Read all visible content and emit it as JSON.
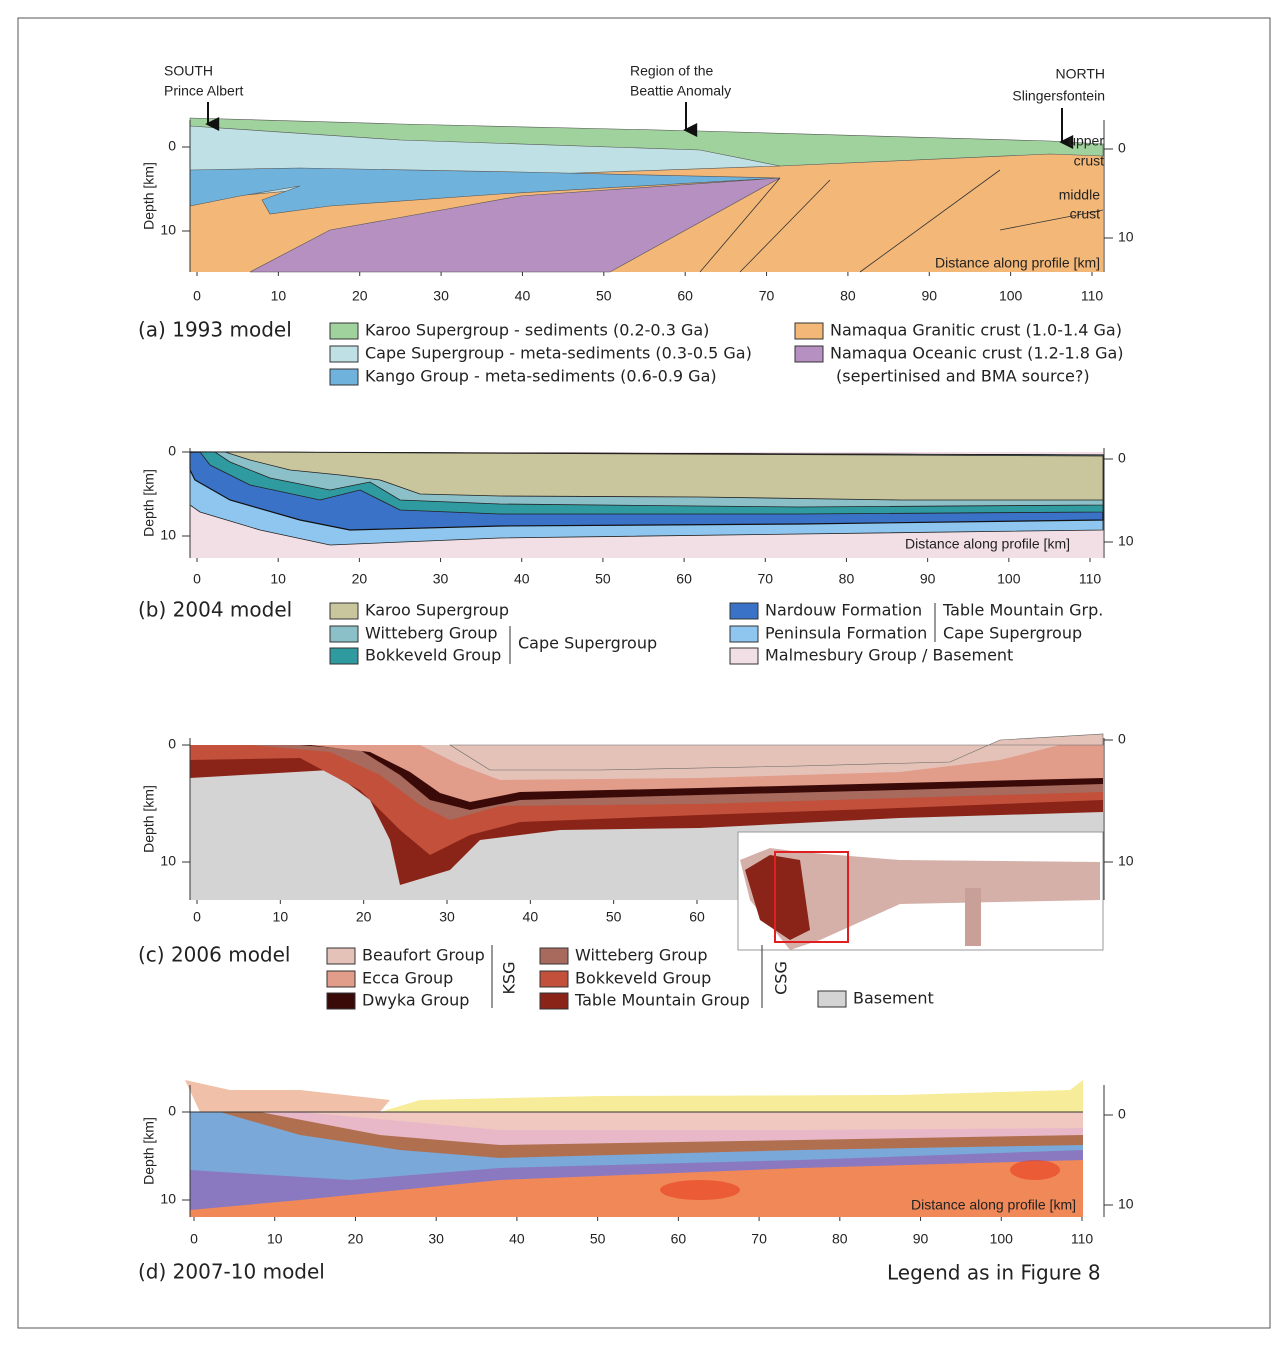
{
  "panels": [
    {
      "label": "(a) 1993 model",
      "y_axis_label": "Depth [km]",
      "x_ticks": [
        0,
        10,
        20,
        30,
        40,
        50,
        60,
        70,
        80,
        90,
        100,
        110
      ],
      "y_ticks": [
        0,
        10
      ],
      "y2_ticks": [
        0,
        10
      ],
      "annotations": [
        "SOUTH",
        "Prince Albert",
        "Region of the",
        "Beattie Anomaly",
        "NORTH",
        "Slingersfontein",
        "upper",
        "crust",
        "middle",
        "crust",
        "Distance along profile [km]"
      ],
      "legend": [
        {
          "text": "Karoo Supergroup - sediments (0.2-0.3 Ga)",
          "color": "#9fd29c"
        },
        {
          "text": "Cape Supergroup - meta-sediments (0.3-0.5 Ga)",
          "color": "#bfe0e4"
        },
        {
          "text": "Kango Group - meta-sediments (0.6-0.9 Ga)",
          "color": "#6fb2dc"
        },
        {
          "text": "Namaqua Granitic crust (1.0-1.4 Ga)",
          "color": "#f3b878"
        },
        {
          "text": "Namaqua Oceanic crust (1.2-1.8 Ga)",
          "color": "#b590c0"
        }
      ],
      "legend_notes": [
        "(sepertinised and BMA source?)"
      ]
    },
    {
      "label": "(b) 2004 model",
      "y_axis_label": "Depth [km]",
      "x_ticks": [
        0,
        10,
        20,
        30,
        40,
        50,
        60,
        70,
        80,
        90,
        100,
        110
      ],
      "y_ticks": [
        0,
        10
      ],
      "y2_ticks": [
        0,
        10
      ],
      "annotations": [
        "Distance along profile [km]"
      ],
      "legend": [
        {
          "text": "Karoo Supergroup",
          "color": "#c9c59c"
        },
        {
          "text": "Witteberg Group",
          "color": "#8cc0c8"
        },
        {
          "text": "Bokkeveld Group",
          "color": "#2f9aa0"
        },
        {
          "text": "Nardouw Formation",
          "color": "#3a72c8"
        },
        {
          "text": "Peninsula Formation",
          "color": "#8ec6f0"
        },
        {
          "text": "Malmesbury Group / Basement",
          "color": "#f2dfe6"
        }
      ],
      "legend_notes": [
        "Cape Supergroup",
        "Table Mountain Grp.",
        "Cape Supergroup"
      ]
    },
    {
      "label": "(c) 2006 model",
      "y_axis_label": "Depth [km]",
      "x_ticks": [
        0,
        10,
        20,
        30,
        40,
        50,
        60
      ],
      "y_ticks": [
        0,
        10
      ],
      "y2_ticks": [
        0,
        10
      ],
      "annotations": [],
      "legend": [
        {
          "text": "Beaufort Group",
          "color": "#e4c2b8"
        },
        {
          "text": "Ecca Group",
          "color": "#e29c8a"
        },
        {
          "text": "Dwyka Group",
          "color": "#3a0a08"
        },
        {
          "text": "Witteberg Group",
          "color": "#a86a5c"
        },
        {
          "text": "Bokkeveld Group",
          "color": "#c2503a"
        },
        {
          "text": "Table Mountain Group",
          "color": "#8a2418"
        },
        {
          "text": "Basement",
          "color": "#d4d4d4"
        }
      ],
      "legend_notes": [
        "KSG",
        "CSG"
      ]
    },
    {
      "label": "(d) 2007-10 model",
      "y_axis_label": "Depth [km]",
      "x_ticks": [
        0,
        10,
        20,
        30,
        40,
        50,
        60,
        70,
        80,
        90,
        100,
        110
      ],
      "y_ticks": [
        0,
        10
      ],
      "y2_ticks": [
        0,
        10
      ],
      "annotations": [
        "Distance along profile [km]"
      ],
      "legend": [],
      "legend_notes": [
        "Legend as in Figure 8"
      ]
    }
  ]
}
